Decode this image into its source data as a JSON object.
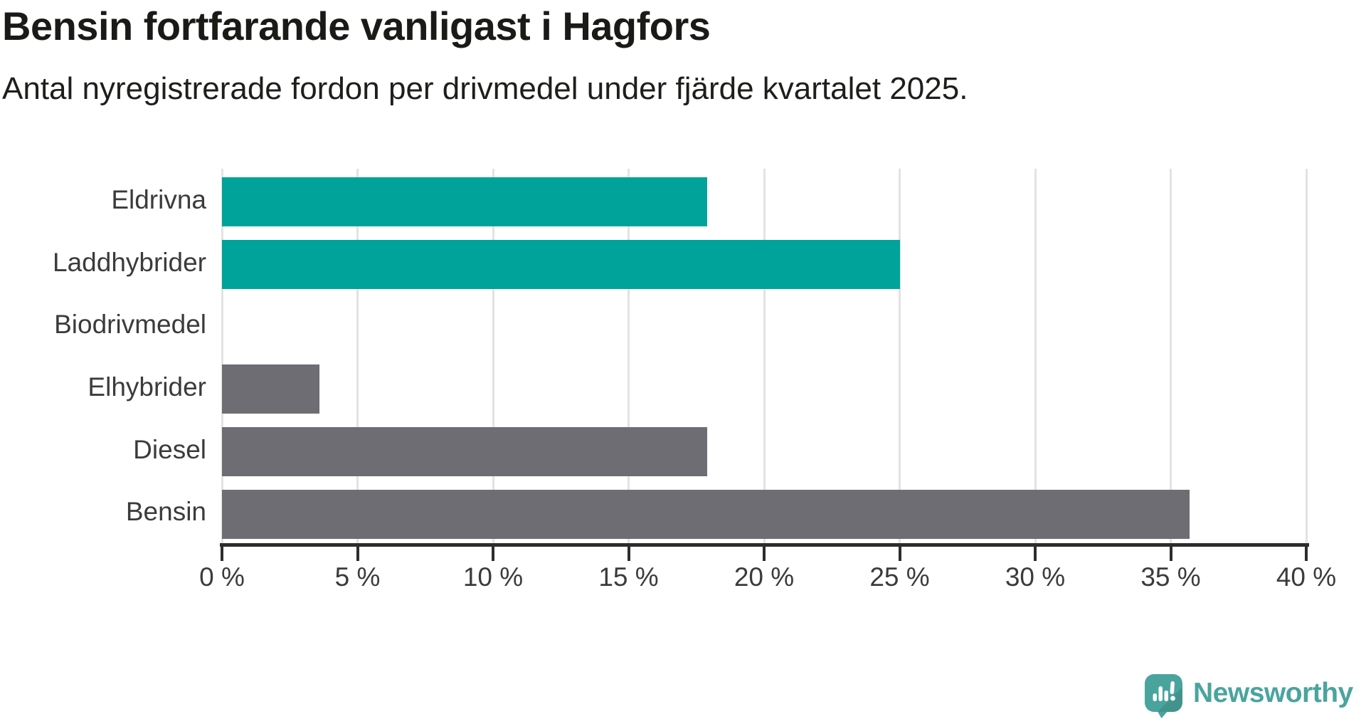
{
  "header": {
    "title": "Bensin fortfarande vanligast i Hagfors",
    "subtitle": "Antal nyregistrerade fordon per drivmedel under fjärde kvartalet 2025."
  },
  "chart_data": {
    "type": "bar",
    "orientation": "horizontal",
    "title": "Bensin fortfarande vanligast i Hagfors",
    "subtitle": "Antal nyregistrerade fordon per drivmedel under fjärde kvartalet 2025.",
    "categories": [
      "Eldrivna",
      "Laddhybrider",
      "Biodrivmedel",
      "Elhybrider",
      "Diesel",
      "Bensin"
    ],
    "values": [
      17.9,
      25.0,
      0,
      3.6,
      17.9,
      35.7
    ],
    "unit": "%",
    "bar_colors": [
      "#00a39a",
      "#00a39a",
      "#00a39a",
      "#6d6d73",
      "#6d6d73",
      "#6d6d73"
    ],
    "xlim": [
      0,
      40
    ],
    "x_ticks": [
      0,
      5,
      10,
      15,
      20,
      25,
      30,
      35,
      40
    ],
    "x_tick_labels": [
      "0 %",
      "5 %",
      "10 %",
      "15 %",
      "20 %",
      "25 %",
      "30 %",
      "35 %",
      "40 %"
    ],
    "grid": "vertical",
    "legend": "none"
  },
  "colors": {
    "highlight_teal": "#00a39a",
    "neutral_gray": "#6d6d73",
    "gridline": "#e3e3e3",
    "axis": "#2d2d2d",
    "text_dark": "#1a1a17",
    "text_label": "#3b3b3b",
    "logo_teal": "#4aa49e"
  },
  "branding": {
    "logo_text": "Newsworthy"
  }
}
